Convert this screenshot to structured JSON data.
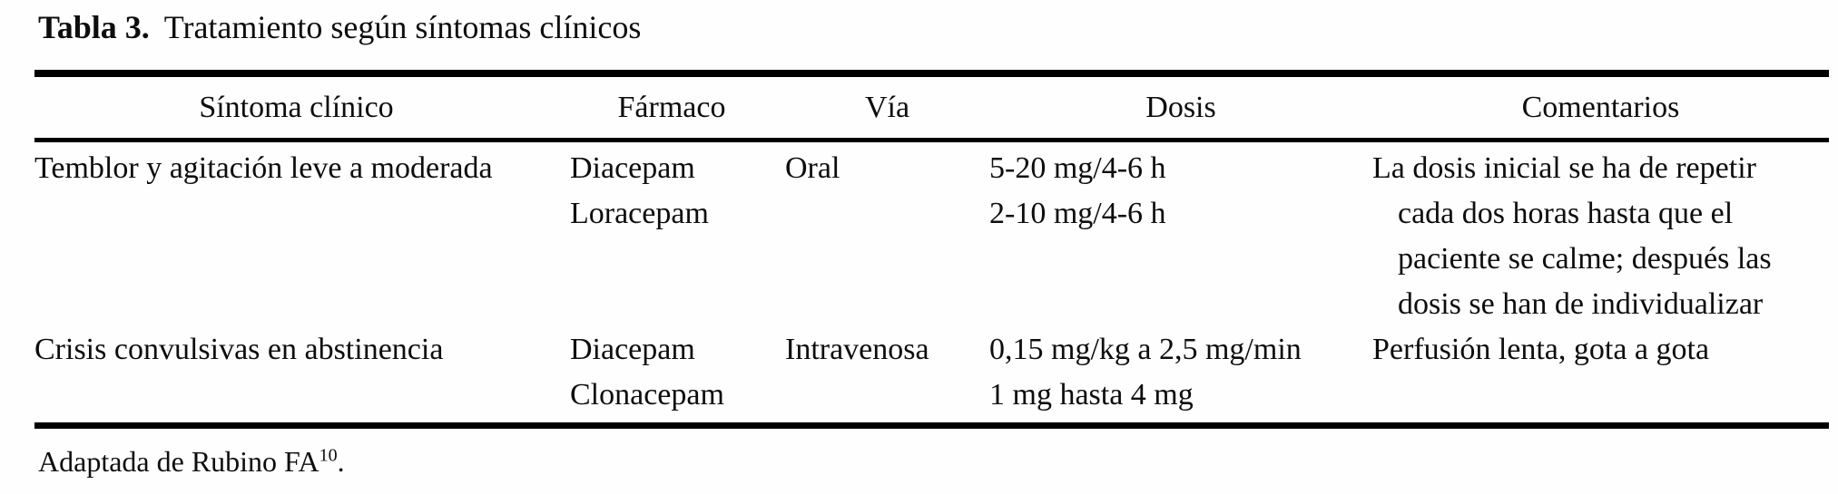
{
  "table": {
    "label": "Tabla 3.",
    "title": "Tratamiento según síntomas clínicos",
    "columns": {
      "symptom": "Síntoma clínico",
      "drug": "Fármaco",
      "route": "Vía",
      "dose": "Dosis",
      "comments": "Comentarios"
    },
    "rows": [
      {
        "symptom": "Temblor y agitación leve a moderada",
        "drugs": [
          "Diacepam",
          "Loracepam"
        ],
        "route": "Oral",
        "doses": [
          "5-20 mg/4-6 h",
          "2-10 mg/4-6 h"
        ],
        "comments": [
          "La dosis inicial se ha de repetir",
          "cada dos horas hasta que el",
          "paciente se calme; después las",
          "dosis se han de individualizar"
        ]
      },
      {
        "symptom": "Crisis convulsivas en abstinencia",
        "drugs": [
          "Diacepam",
          "Clonacepam"
        ],
        "route": "Intravenosa",
        "doses": [
          "0,15 mg/kg a 2,5 mg/min",
          "1 mg hasta 4 mg"
        ],
        "comments": [
          "Perfusión lenta, gota a gota"
        ]
      }
    ],
    "footnote": {
      "text": "Adaptada de Rubino FA",
      "reference": "10",
      "suffix": "."
    }
  },
  "colors": {
    "text": "#0d0d0d",
    "rule": "#000000",
    "background": "#fefefe"
  }
}
